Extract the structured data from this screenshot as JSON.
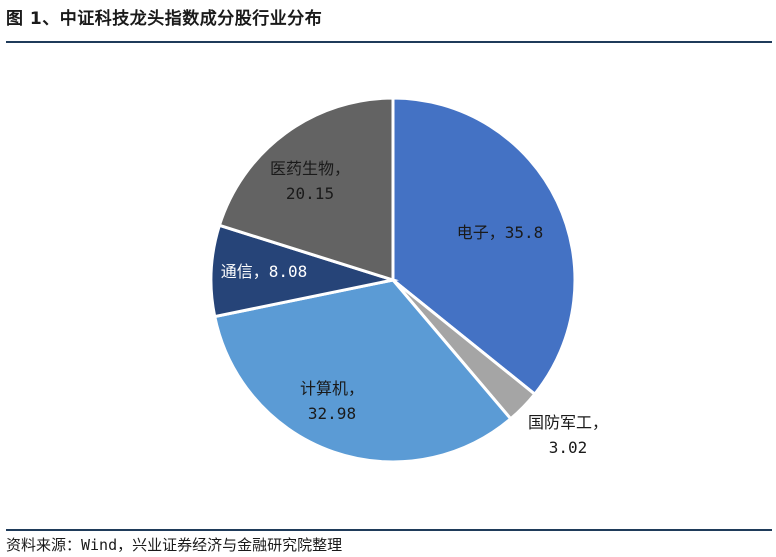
{
  "header": {
    "title": "图 1、中证科技龙头指数成分股行业分布"
  },
  "footer": {
    "source": "资料来源：Wind，兴业证券经济与金融研究院整理"
  },
  "chart_data": {
    "type": "pie",
    "start_angle_deg": 90,
    "direction": "clockwise",
    "slices": [
      {
        "name": "电子",
        "value": 35.8,
        "label_line1": "电子，35.8",
        "label_line2": "",
        "color": "#4472C4",
        "text_color": "#1a1a1a"
      },
      {
        "name": "国防军工",
        "value": 3.02,
        "label_line1": "国防军工，",
        "label_line2": "3.02",
        "color": "#A5A5A5",
        "text_color": "#1a1a1a"
      },
      {
        "name": "计算机",
        "value": 32.98,
        "label_line1": "计算机，",
        "label_line2": "32.98",
        "color": "#5B9BD5",
        "text_color": "#1a1a1a"
      },
      {
        "name": "通信",
        "value": 8.08,
        "label_line1": "通信，8.08",
        "label_line2": "",
        "color": "#264478",
        "text_color": "#ffffff"
      },
      {
        "name": "医药生物",
        "value": 20.15,
        "label_line1": "医药生物，",
        "label_line2": "20.15",
        "color": "#636363",
        "text_color": "#1a1a1a"
      }
    ]
  }
}
